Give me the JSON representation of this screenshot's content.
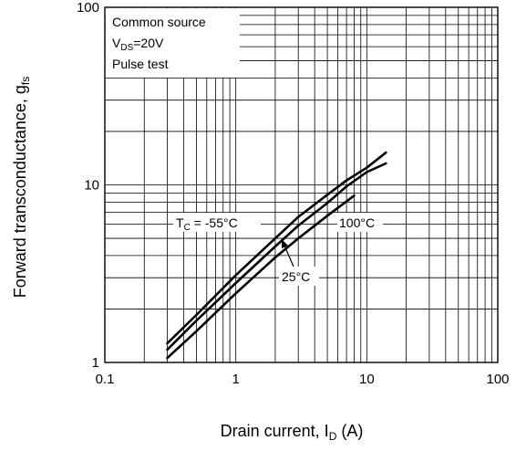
{
  "chart_data": {
    "type": "line",
    "xlabel_main": "Drain current, I",
    "xlabel_sub": "D",
    "xlabel_unit": " (A)",
    "ylabel_main": "Forward transconductance, g",
    "ylabel_sub": "fs",
    "x_scale": "log",
    "y_scale": "log",
    "xlim": [
      0.1,
      100
    ],
    "ylim": [
      1,
      100
    ],
    "grid": true,
    "x_ticks": [
      {
        "value": 0.1,
        "label": "0.1"
      },
      {
        "value": 1,
        "label": "1"
      },
      {
        "value": 10,
        "label": "10"
      },
      {
        "value": 100,
        "label": "100"
      }
    ],
    "y_ticks": [
      {
        "value": 1,
        "label": "1"
      },
      {
        "value": 10,
        "label": "10"
      },
      {
        "value": 100,
        "label": "100"
      }
    ],
    "conditions": {
      "line1": "Common source",
      "line2_main": "V",
      "line2_sub": "DS",
      "line2_rest": "=20V",
      "line3": "Pulse test"
    },
    "series": [
      {
        "name": "TC = -55°C",
        "x": [
          0.3,
          0.5,
          1,
          2,
          3,
          5,
          7,
          10,
          14
        ],
        "y": [
          1.28,
          1.85,
          3.1,
          5.0,
          6.6,
          8.8,
          10.6,
          12.5,
          15.2
        ]
      },
      {
        "name": "25°C",
        "x": [
          0.3,
          0.5,
          1,
          2,
          3,
          5,
          7,
          10,
          14
        ],
        "y": [
          1.18,
          1.72,
          2.8,
          4.5,
          5.9,
          7.9,
          9.8,
          11.8,
          13.2
        ]
      },
      {
        "name": "100°C",
        "x": [
          0.3,
          0.5,
          1,
          2,
          3,
          5,
          8
        ],
        "y": [
          1.06,
          1.5,
          2.45,
          3.9,
          5.0,
          6.7,
          8.7
        ]
      }
    ],
    "annotations": {
      "tc_main": "T",
      "tc_sub": "C",
      "tc_rest": " = -55°C",
      "label_100": "100°C",
      "label_25": "25°C"
    }
  }
}
